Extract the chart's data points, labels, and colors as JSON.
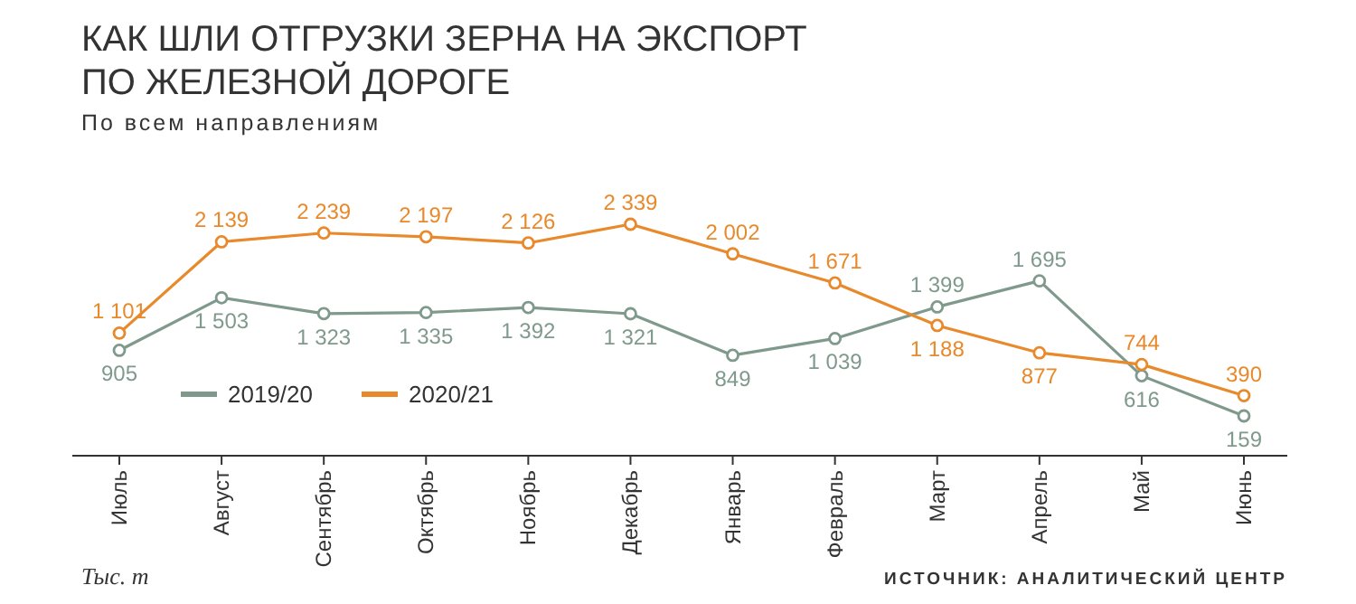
{
  "chart_data": {
    "type": "line",
    "title": "КАК ШЛИ ОТГРУЗКИ ЗЕРНА НА ЭКСПОРТ ПО ЖЕЛЕЗНОЙ ДОРОГЕ",
    "subtitle": "По всем направлениям",
    "categories": [
      "Июль",
      "Август",
      "Сентябрь",
      "Октябрь",
      "Ноябрь",
      "Декабрь",
      "Январь",
      "Февраль",
      "Март",
      "Апрель",
      "Май",
      "Июнь"
    ],
    "series": [
      {
        "name": "2019/20",
        "color": "#7f9a8c",
        "values": [
          905,
          1503,
          1323,
          1335,
          1392,
          1321,
          849,
          1039,
          1399,
          1695,
          616,
          159
        ],
        "value_labels": [
          "905",
          "1 503",
          "1 323",
          "1 335",
          "1 392",
          "1 321",
          "849",
          "1 039",
          "1 399",
          "1 695",
          "616",
          "159"
        ]
      },
      {
        "name": "2020/21",
        "color": "#e8892b",
        "values": [
          1101,
          2139,
          2239,
          2197,
          2126,
          2339,
          2002,
          1671,
          1188,
          877,
          744,
          390
        ],
        "value_labels": [
          "1 101",
          "2 139",
          "2 239",
          "2 197",
          "2 126",
          "2 339",
          "2 002",
          "1 671",
          "1 188",
          "877",
          "744",
          "390"
        ]
      }
    ],
    "annotations": [
      "Тыс. т",
      "ИСТОЧНИК: АНАЛИТИЧЕСКИЙ ЦЕНТР"
    ],
    "marker": "circle",
    "line_style": "solid",
    "legend": "bottom left",
    "grid": false
  }
}
